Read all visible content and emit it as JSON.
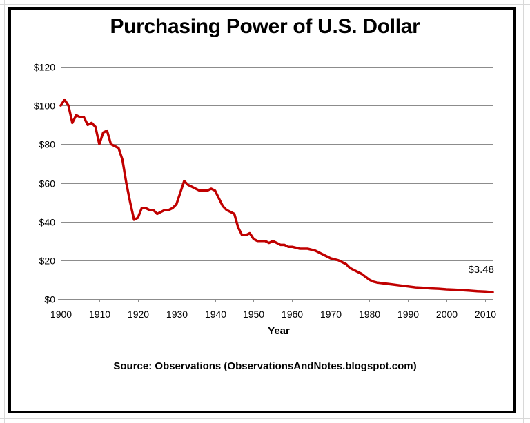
{
  "chart_data": {
    "type": "line",
    "title": "Purchasing Power of U.S. Dollar",
    "xlabel": "Year",
    "ylabel": "",
    "source": "Source: Observations  (ObservationsAndNotes.blogspot.com)",
    "xlim": [
      1900,
      2012
    ],
    "ylim": [
      0,
      120
    ],
    "xticks": [
      1900,
      1910,
      1920,
      1930,
      1940,
      1950,
      1960,
      1970,
      1980,
      1990,
      2000,
      2010
    ],
    "xtick_labels": [
      "1900",
      "1910",
      "1920",
      "1930",
      "1940",
      "1950",
      "1960",
      "1970",
      "1980",
      "1990",
      "2000",
      "2010"
    ],
    "yticks": [
      0,
      20,
      40,
      60,
      80,
      100,
      120
    ],
    "ytick_labels": [
      "$0",
      "$20",
      "$40",
      "$60",
      "$80",
      "$100",
      "$120"
    ],
    "grid": true,
    "line_color": "#c00000",
    "series": [
      {
        "x": [
          1900,
          1901,
          1902,
          1903,
          1904,
          1905,
          1906,
          1907,
          1908,
          1909,
          1910,
          1911,
          1912,
          1913,
          1914,
          1915,
          1916,
          1917,
          1918,
          1919,
          1920,
          1921,
          1922,
          1923,
          1924,
          1925,
          1926,
          1927,
          1928,
          1929,
          1930,
          1931,
          1932,
          1933,
          1934,
          1935,
          1936,
          1937,
          1938,
          1939,
          1940,
          1941,
          1942,
          1943,
          1944,
          1945,
          1946,
          1947,
          1948,
          1949,
          1950,
          1951,
          1952,
          1953,
          1954,
          1955,
          1956,
          1957,
          1958,
          1959,
          1960,
          1962,
          1964,
          1966,
          1968,
          1970,
          1972,
          1974,
          1975,
          1976,
          1978,
          1980,
          1981,
          1982,
          1984,
          1986,
          1988,
          1990,
          1992,
          1994,
          1996,
          1998,
          2000,
          2002,
          2004,
          2006,
          2008,
          2010,
          2012
        ],
        "y": [
          100,
          103,
          100,
          91,
          95,
          94,
          94,
          90,
          91,
          89,
          80,
          86,
          87,
          80,
          79,
          78,
          72,
          60,
          50,
          41,
          42,
          47,
          47,
          46,
          46,
          44,
          45,
          46,
          46,
          47,
          49,
          55,
          61,
          59,
          58,
          57,
          56,
          56,
          56,
          57,
          56,
          52,
          48,
          46,
          45,
          44,
          37,
          33,
          33,
          34,
          31,
          30,
          30,
          30,
          29,
          30,
          29,
          28,
          28,
          27,
          27,
          26,
          26,
          25,
          23,
          21,
          20,
          18,
          16,
          15,
          13,
          10,
          9,
          8.5,
          8,
          7.5,
          7,
          6.5,
          6,
          5.8,
          5.5,
          5.3,
          5,
          4.8,
          4.6,
          4.3,
          4,
          3.8,
          3.48
        ]
      }
    ],
    "annotations": [
      {
        "x": 2012,
        "y": 3.48,
        "text": "$3.48"
      }
    ]
  }
}
